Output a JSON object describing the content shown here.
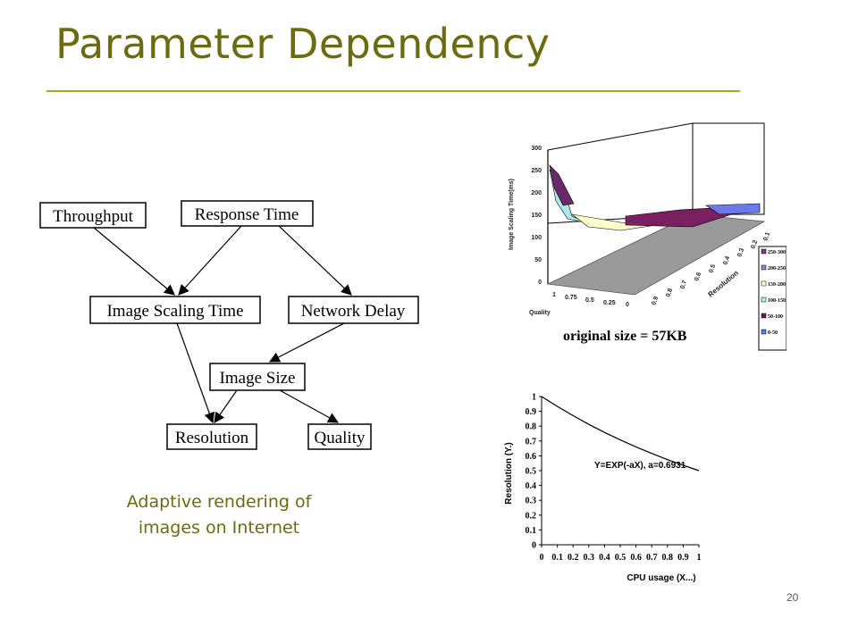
{
  "slide": {
    "title": "Parameter Dependency",
    "caption_line1": "Adaptive rendering of",
    "caption_line2": "images on Internet",
    "page_number": "20"
  },
  "diagram": {
    "nodes": [
      {
        "id": "throughput",
        "label": "Throughput"
      },
      {
        "id": "response_time",
        "label": "Response Time"
      },
      {
        "id": "image_scaling_time",
        "label": "Image Scaling Time"
      },
      {
        "id": "network_delay",
        "label": "Network Delay"
      },
      {
        "id": "image_size",
        "label": "Image Size"
      },
      {
        "id": "resolution",
        "label": "Resolution"
      },
      {
        "id": "quality",
        "label": "Quality"
      }
    ],
    "edges": [
      {
        "from": "throughput",
        "to": "image_scaling_time"
      },
      {
        "from": "response_time",
        "to": "image_scaling_time"
      },
      {
        "from": "response_time",
        "to": "network_delay"
      },
      {
        "from": "network_delay",
        "to": "image_size"
      },
      {
        "from": "image_scaling_time",
        "to": "resolution"
      },
      {
        "from": "image_size",
        "to": "resolution"
      },
      {
        "from": "image_size",
        "to": "quality"
      }
    ]
  },
  "surface_plot": {
    "z_axis_label": "Image Scaling Time(ms)",
    "z_ticks": [
      "300",
      "250",
      "200",
      "150",
      "100",
      "50",
      "0"
    ],
    "quality_label": "Quality",
    "quality_ticks": [
      "1",
      "0.75",
      "0.5",
      "0.25",
      "0"
    ],
    "resolution_label": "Resolution",
    "resolution_ticks": [
      "0.9",
      "0.8",
      "0.7",
      "0.6",
      "0.5",
      "0.4",
      "0.3",
      "0.2",
      "0.1"
    ],
    "subtitle": "original size = 57KB",
    "legend": [
      {
        "label": "250-300",
        "color": "#7a3f7a"
      },
      {
        "label": "200-250",
        "color": "#8a8ac8"
      },
      {
        "label": "150-200",
        "color": "#ffffcc"
      },
      {
        "label": "100-150",
        "color": "#aef0f0"
      },
      {
        "label": "50-100",
        "color": "#6a1f5a"
      },
      {
        "label": "0-50",
        "color": "#5a7ae8"
      }
    ]
  },
  "chart_data": {
    "type": "line",
    "xlabel": "CPU usage (X...)",
    "ylabel": "Resolution (Y.)",
    "xlim": [
      0,
      1
    ],
    "ylim": [
      0,
      1
    ],
    "x_ticks": [
      "0",
      "0.1",
      "0.2",
      "0.3",
      "0.4",
      "0.5",
      "0.6",
      "0.7",
      "0.8",
      "0.9",
      "1"
    ],
    "y_ticks": [
      "0",
      "0.1",
      "0.2",
      "0.3",
      "0.4",
      "0.5",
      "0.6",
      "0.7",
      "0.8",
      "0.9",
      "1"
    ],
    "annotation": "Y=EXP(-aX), a=0.6931",
    "series": [
      {
        "x": [
          0,
          0.1,
          0.2,
          0.3,
          0.4,
          0.5,
          0.6,
          0.7,
          0.8,
          0.9,
          1
        ],
        "values": [
          1,
          0.933,
          0.871,
          0.812,
          0.758,
          0.707,
          0.66,
          0.616,
          0.574,
          0.536,
          0.5
        ]
      }
    ],
    "grid": false
  }
}
